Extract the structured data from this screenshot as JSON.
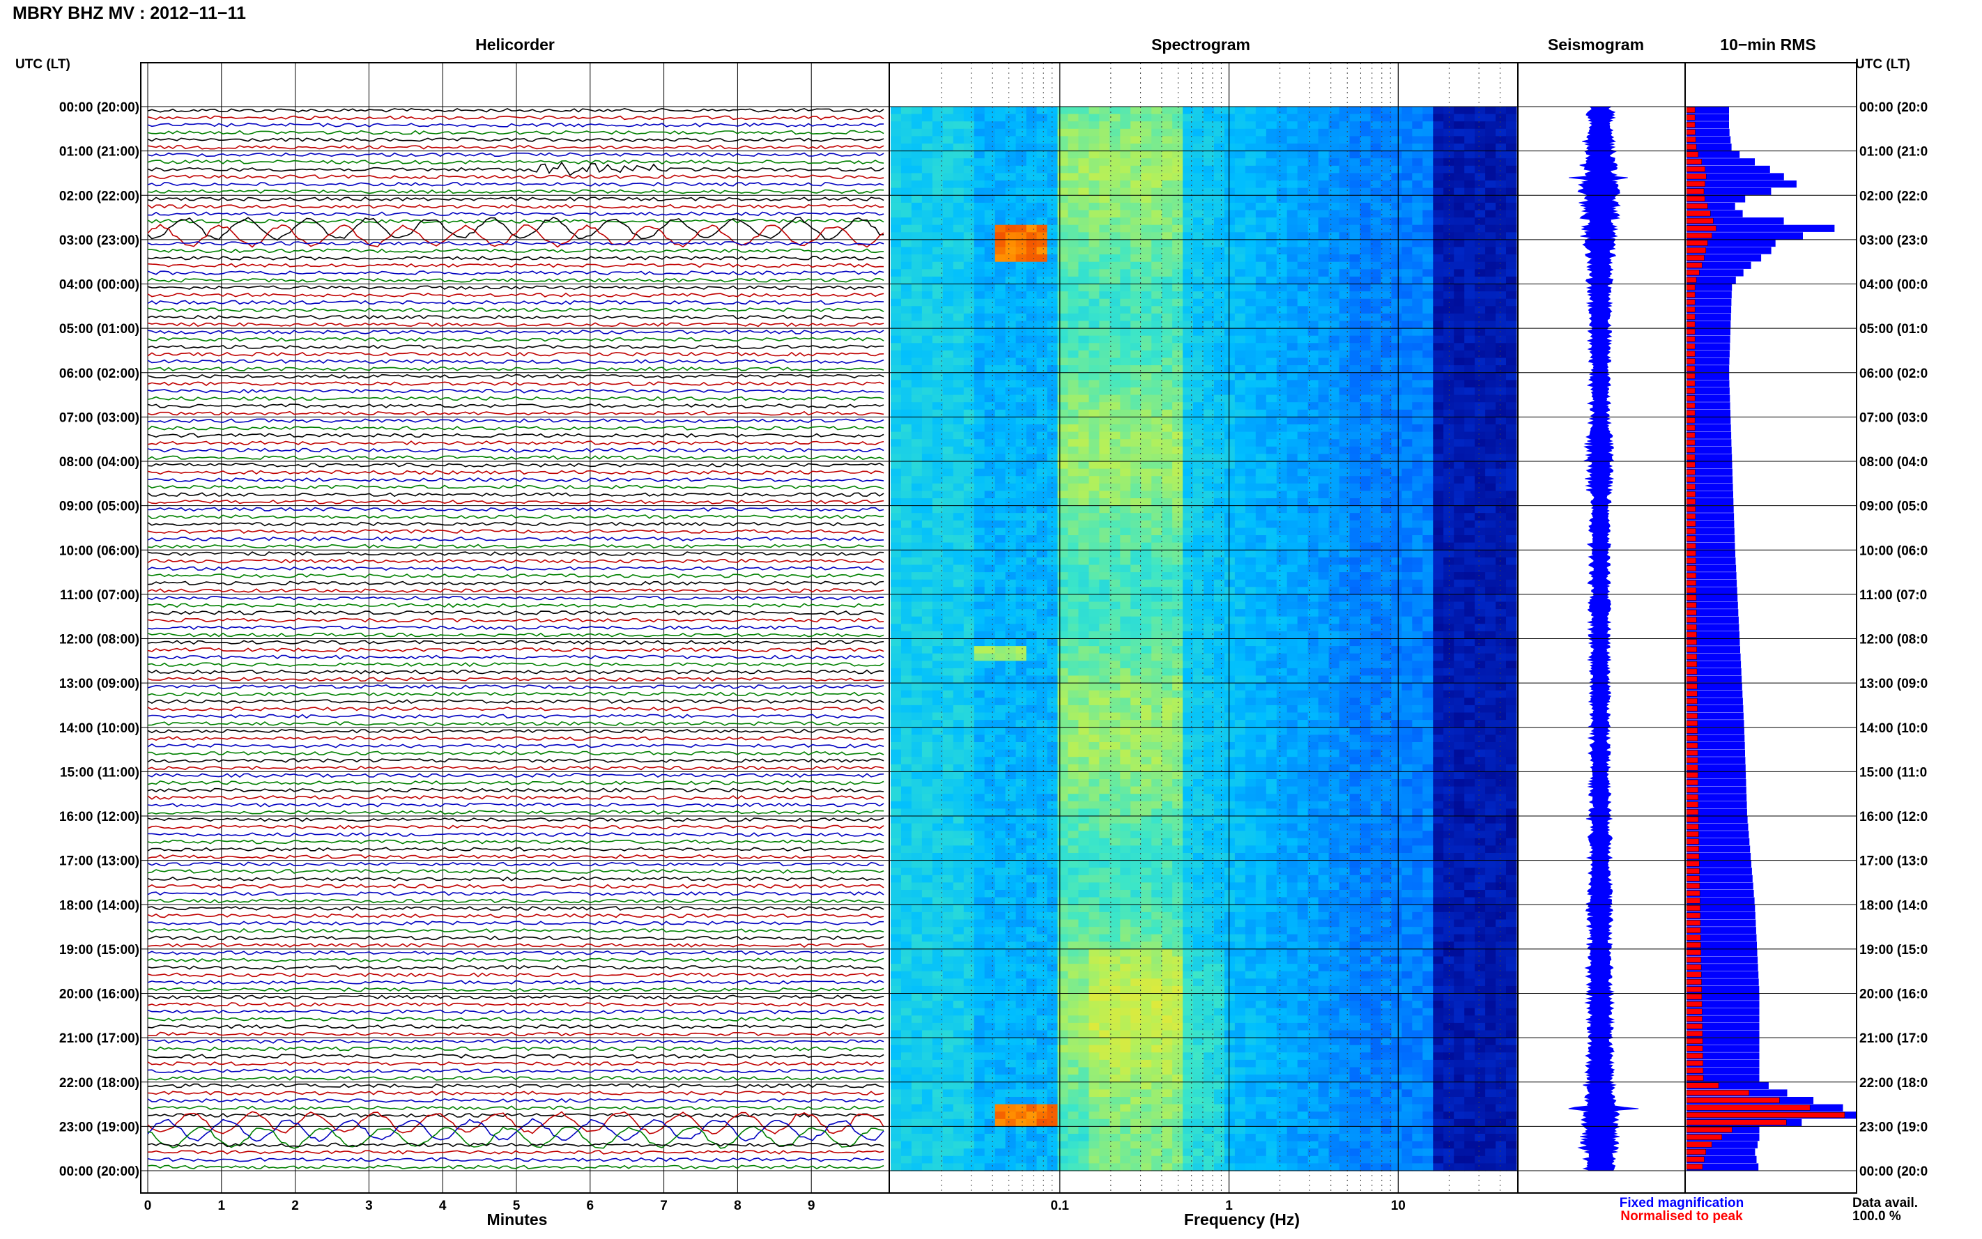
{
  "title": "MBRY BHZ MV : 2012−11−11",
  "panels": {
    "helicorder": "Helicorder",
    "spectrogram": "Spectrogram",
    "seismogram": "Seismogram",
    "rms": "10−min RMS"
  },
  "y_header": "UTC (LT)",
  "time_labels": [
    "00:00 (20:00)",
    "01:00 (21:00)",
    "02:00 (22:00)",
    "03:00 (23:00)",
    "04:00 (00:00)",
    "05:00 (01:00)",
    "06:00 (02:00)",
    "07:00 (03:00)",
    "08:00 (04:00)",
    "09:00 (05:00)",
    "10:00 (06:00)",
    "11:00 (07:00)",
    "12:00 (08:00)",
    "13:00 (09:00)",
    "14:00 (10:00)",
    "15:00 (11:00)",
    "16:00 (12:00)",
    "17:00 (13:00)",
    "18:00 (14:00)",
    "19:00 (15:00)",
    "20:00 (16:00)",
    "21:00 (17:00)",
    "22:00 (18:00)",
    "23:00 (19:00)",
    "00:00 (20:00)"
  ],
  "right_time_labels": [
    "00:00 (20:0",
    "01:00 (21:0",
    "02:00 (22:0",
    "03:00 (23:0",
    "04:00 (00:0",
    "05:00 (01:0",
    "06:00 (02:0",
    "07:00 (03:0",
    "08:00 (04:0",
    "09:00 (05:0",
    "10:00 (06:0",
    "11:00 (07:0",
    "12:00 (08:0",
    "13:00 (09:0",
    "14:00 (10:0",
    "15:00 (11:0",
    "16:00 (12:0",
    "17:00 (13:0",
    "18:00 (14:0",
    "19:00 (15:0",
    "20:00 (16:0",
    "21:00 (17:0",
    "22:00 (18:0",
    "23:00 (19:0",
    "00:00 (20:0"
  ],
  "helicorder": {
    "xlabel": "Minutes",
    "xticks": [
      "0",
      "1",
      "2",
      "3",
      "4",
      "5",
      "6",
      "7",
      "8",
      "9"
    ],
    "trace_colors": [
      "#000000",
      "#c00000",
      "#0000c0",
      "#008000"
    ]
  },
  "spectrogram": {
    "xlabel": "Frequency (Hz)",
    "xticks": [
      "0.1",
      "1",
      "10"
    ],
    "xscale": "log"
  },
  "legend": {
    "fixed": "Fixed magnification",
    "normalised": "Normalised to peak",
    "fixed_color": "#0000ff",
    "normalised_color": "#ff0000"
  },
  "data_avail": {
    "label": "Data avail.",
    "value": "100.0 %"
  },
  "chart_data": [
    {
      "type": "line",
      "name": "helicorder",
      "x_unit": "minutes",
      "xlim": [
        0,
        10
      ],
      "rows_per_hour": 6,
      "events": [
        {
          "time": "01:20",
          "minutes": [
            5.6,
            7.2
          ],
          "note": "high-frequency burst"
        },
        {
          "time": "02:40",
          "minutes": [
            0,
            10
          ],
          "note": "large long-period oscillation"
        },
        {
          "time": "22:50",
          "minutes": [
            0,
            10
          ],
          "note": "large long-period oscillation"
        }
      ]
    },
    {
      "type": "heatmap",
      "name": "spectrogram",
      "xscale": "log",
      "xlim": [
        0.01,
        50
      ],
      "x_unit": "Hz",
      "ylim_hours": [
        0,
        24
      ],
      "hot_spots": [
        {
          "hours": [
            2.6,
            3.5
          ],
          "freq_hz": [
            0.04,
            0.08
          ],
          "level": "high"
        },
        {
          "hours": [
            22.5,
            23.0
          ],
          "freq_hz": [
            0.04,
            0.1
          ],
          "level": "high"
        },
        {
          "hours": [
            12.1,
            12.5
          ],
          "freq_hz": [
            0.03,
            0.06
          ],
          "level": "medium"
        }
      ]
    },
    {
      "type": "line",
      "name": "seismogram",
      "hours": [
        0,
        1,
        2,
        3,
        4,
        5,
        6,
        7,
        8,
        9,
        10,
        11,
        12,
        13,
        14,
        15,
        16,
        17,
        18,
        19,
        20,
        21,
        22,
        23,
        24
      ],
      "envelope": [
        0.14,
        0.15,
        0.2,
        0.16,
        0.12,
        0.11,
        0.1,
        0.1,
        0.14,
        0.1,
        0.1,
        0.1,
        0.1,
        0.1,
        0.1,
        0.1,
        0.11,
        0.12,
        0.12,
        0.12,
        0.13,
        0.13,
        0.14,
        0.2,
        0.14
      ],
      "spikes": [
        {
          "hours": 1.6,
          "amplitude": 0.35
        },
        {
          "hours": 7.7,
          "amplitude": 0.22
        },
        {
          "hours": 22.6,
          "amplitude": 0.65
        }
      ]
    },
    {
      "type": "bar",
      "name": "10-min RMS",
      "orientation": "horizontal",
      "ylim_hours": [
        0,
        24
      ],
      "series": [
        {
          "name": "Fixed magnification",
          "hours": [
            0.5,
            1.0,
            1.5,
            1.8,
            2.0,
            2.3,
            2.5,
            2.7,
            2.8,
            3.0,
            3.3,
            3.5,
            4.0,
            6.0,
            8.0,
            10.0,
            12.0,
            14.0,
            16.0,
            18.0,
            20.0,
            22.0,
            22.3,
            22.6,
            22.8,
            23.0,
            23.3,
            23.6,
            24.0
          ],
          "values": [
            0.28,
            0.3,
            0.6,
            0.75,
            0.42,
            0.3,
            0.42,
            0.95,
            1.0,
            0.6,
            0.55,
            0.45,
            0.3,
            0.28,
            0.3,
            0.32,
            0.35,
            0.38,
            0.4,
            0.45,
            0.48,
            0.48,
            0.7,
            1.05,
            1.15,
            0.48,
            0.48,
            0.45,
            0.48
          ]
        },
        {
          "name": "Normalised to peak",
          "hours": [
            0.5,
            1.0,
            1.5,
            2.0,
            2.5,
            2.8,
            3.0,
            3.5,
            4.0,
            8.0,
            12.0,
            16.0,
            20.0,
            22.0,
            22.6,
            22.8,
            23.0,
            23.5,
            24.0
          ],
          "values": [
            0.05,
            0.06,
            0.12,
            0.1,
            0.15,
            0.18,
            0.13,
            0.1,
            0.05,
            0.05,
            0.06,
            0.07,
            0.09,
            0.1,
            0.75,
            1.0,
            0.3,
            0.12,
            0.09
          ]
        }
      ]
    }
  ]
}
